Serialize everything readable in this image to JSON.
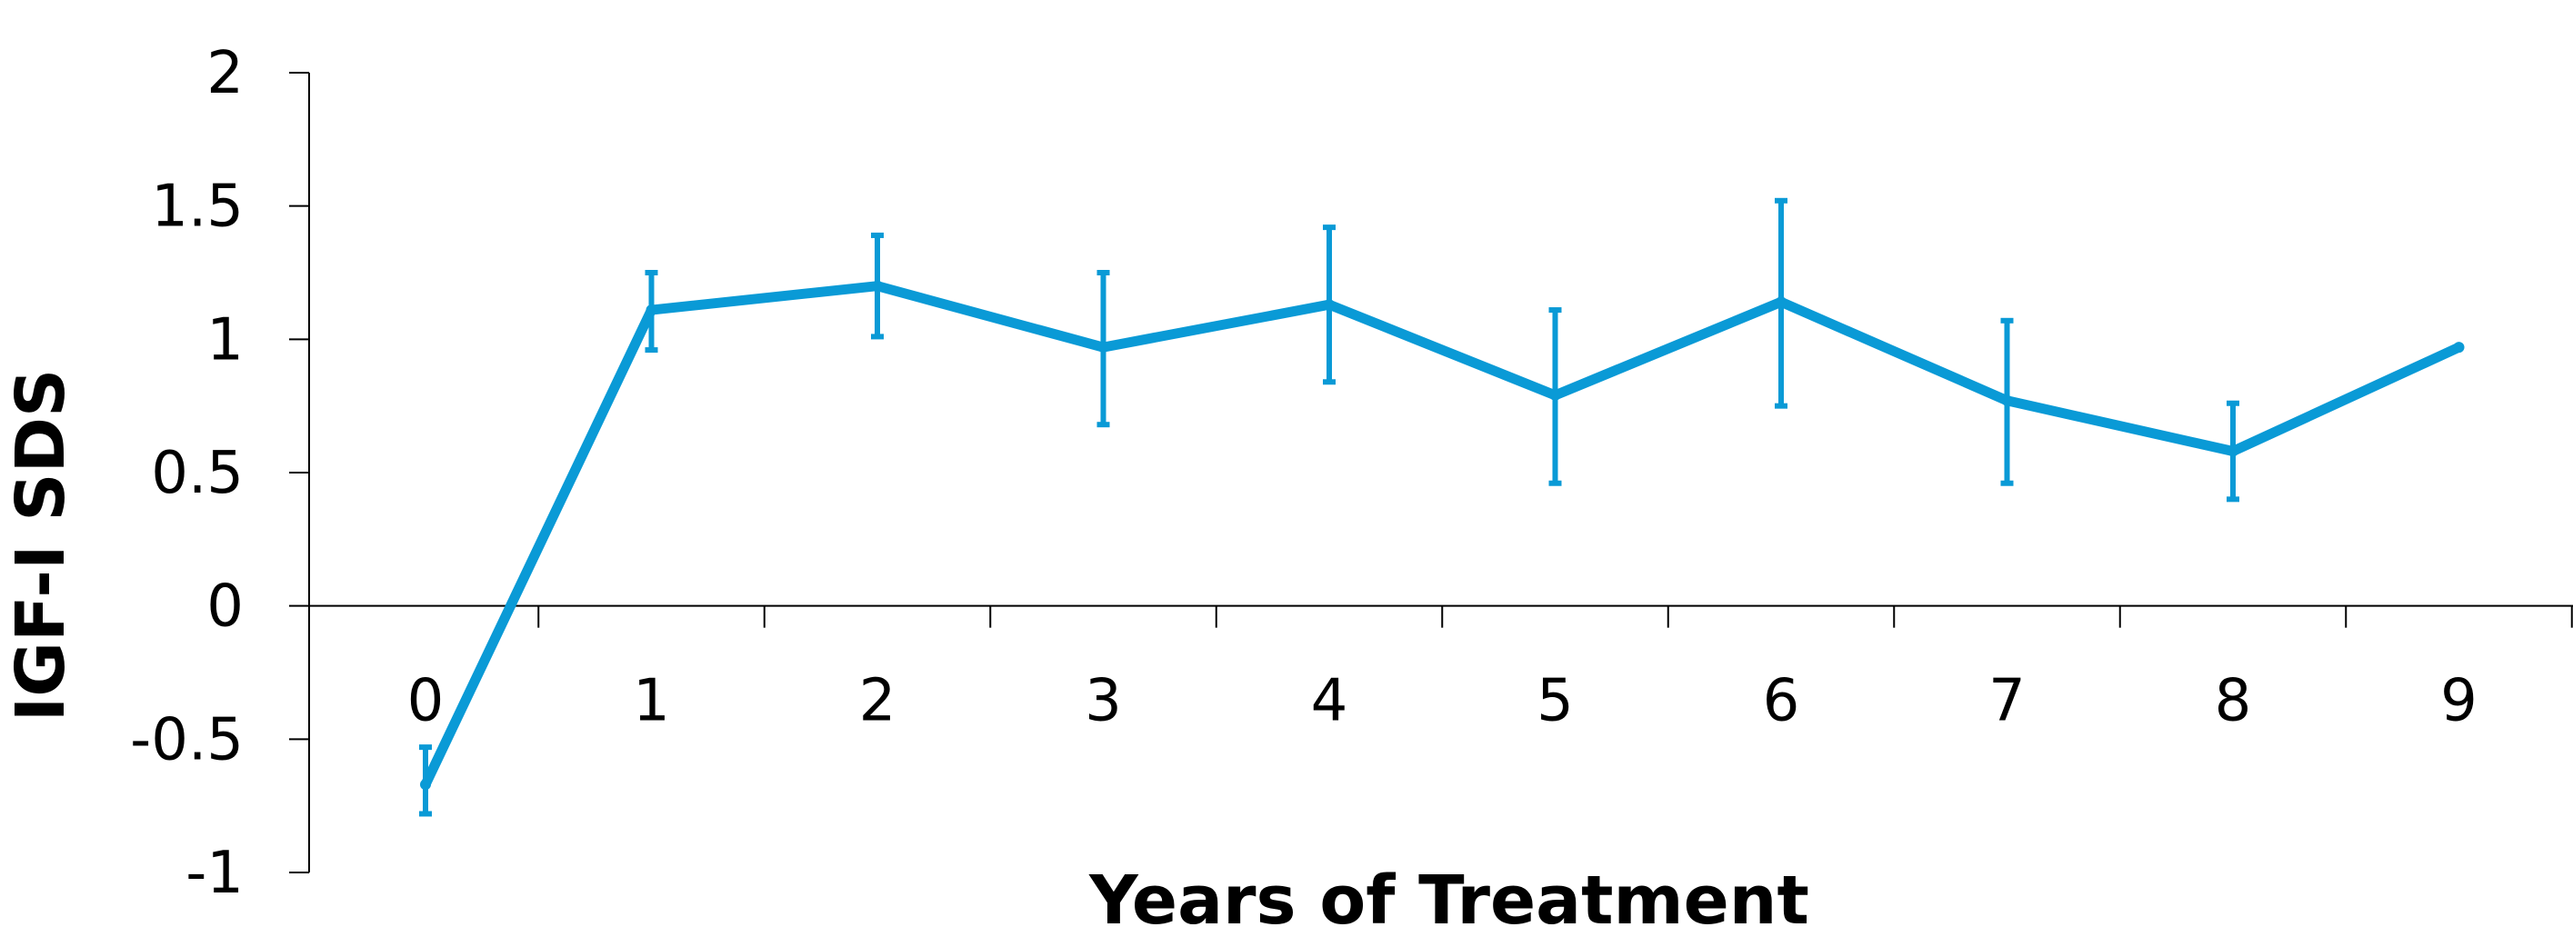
{
  "chart_data": {
    "type": "line",
    "title": "",
    "xlabel": "Years of Treatment",
    "ylabel": "IGF-I SDS",
    "x": [
      0,
      1,
      2,
      3,
      4,
      5,
      6,
      7,
      8,
      9
    ],
    "x_tick_labels": [
      "0",
      "1",
      "2",
      "3",
      "4",
      "5",
      "6",
      "7",
      "8",
      "9"
    ],
    "y_tick_labels": [
      "2",
      "1.5",
      "1",
      "0.5",
      "0",
      "-0.5",
      "-1"
    ],
    "y_ticks": [
      2,
      1.5,
      1,
      0.5,
      0,
      -0.5,
      -1
    ],
    "ylim": [
      -1,
      2
    ],
    "xlim": [
      -0.5,
      9.5
    ],
    "grid": false,
    "legend": "none",
    "series_color": "#0A9AD6",
    "series": [
      {
        "values": [
          -0.67,
          1.11,
          1.2,
          0.97,
          1.13,
          0.79,
          1.14,
          0.77,
          0.58,
          0.97
        ],
        "error_upper": [
          -0.53,
          1.25,
          1.39,
          1.25,
          1.42,
          1.11,
          1.52,
          1.07,
          0.76,
          null
        ],
        "error_lower": [
          -0.78,
          0.96,
          1.01,
          0.68,
          0.84,
          0.46,
          0.75,
          0.46,
          0.4,
          null
        ]
      }
    ]
  }
}
